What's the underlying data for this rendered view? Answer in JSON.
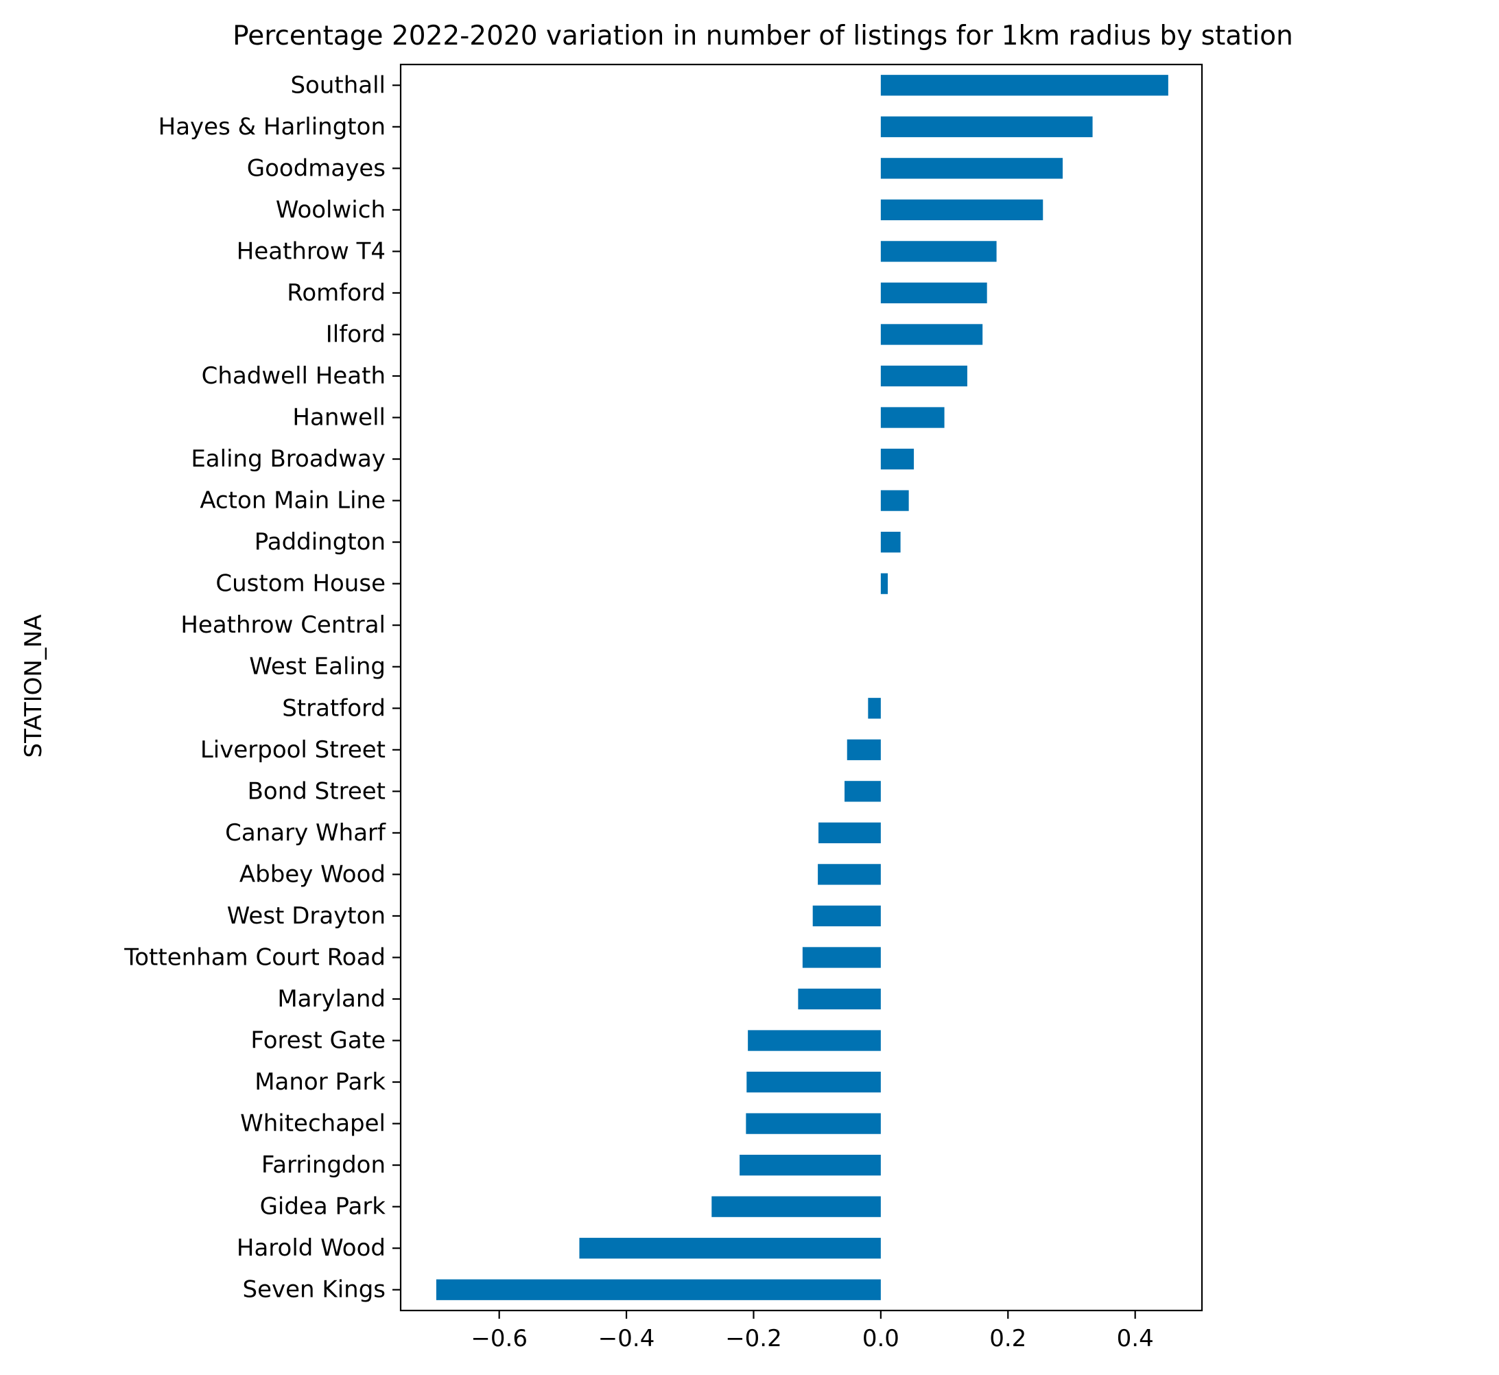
{
  "chart_data": {
    "type": "bar",
    "orientation": "horizontal",
    "title": "Percentage 2022-2020 variation in number of listings for 1km radius by station",
    "xlabel": "",
    "ylabel": "STATION_NA",
    "xlim": [
      -0.755,
      0.505
    ],
    "xticks": [
      -0.6,
      -0.4,
      -0.2,
      0.0,
      0.2,
      0.4
    ],
    "xtick_labels": [
      "−0.6",
      "−0.4",
      "−0.2",
      "0.0",
      "0.2",
      "0.4"
    ],
    "grid": false,
    "bar_color": "#0072B2",
    "categories": [
      "Southall",
      "Hayes & Harlington",
      "Goodmayes",
      "Woolwich",
      "Heathrow T4",
      "Romford",
      "Ilford",
      "Chadwell Heath",
      "Hanwell",
      "Ealing Broadway",
      "Acton Main Line",
      "Paddington",
      "Custom House",
      "Heathrow Central",
      "West Ealing",
      "Stratford",
      "Liverpool Street",
      "Bond Street",
      "Canary Wharf",
      "Abbey Wood",
      "West Drayton",
      "Tottenham Court Road",
      "Maryland",
      "Forest Gate",
      "Manor Park",
      "Whitechapel",
      "Farringdon",
      "Gidea Park",
      "Harold Wood",
      "Seven Kings"
    ],
    "values": [
      0.452,
      0.333,
      0.286,
      0.255,
      0.182,
      0.167,
      0.16,
      0.136,
      0.1,
      0.052,
      0.044,
      0.031,
      0.011,
      0.0,
      0.0,
      -0.02,
      -0.053,
      -0.057,
      -0.098,
      -0.099,
      -0.107,
      -0.123,
      -0.13,
      -0.209,
      -0.211,
      -0.212,
      -0.222,
      -0.266,
      -0.474,
      -0.699
    ]
  }
}
